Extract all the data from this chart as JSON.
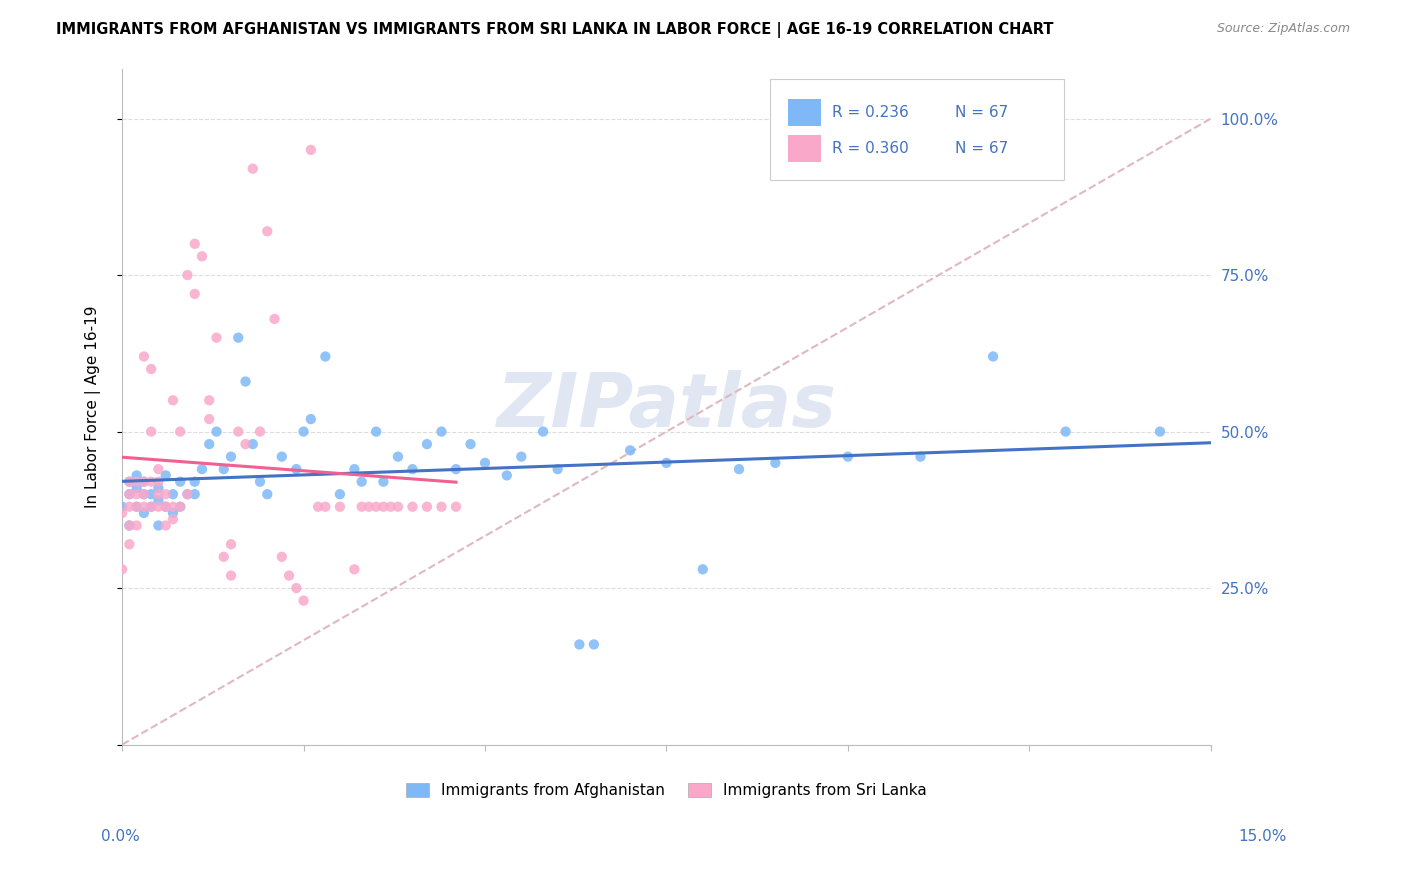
{
  "title": "IMMIGRANTS FROM AFGHANISTAN VS IMMIGRANTS FROM SRI LANKA IN LABOR FORCE | AGE 16-19 CORRELATION CHART",
  "source": "Source: ZipAtlas.com",
  "ylabel": "In Labor Force | Age 16-19",
  "xmin": 0.0,
  "xmax": 0.15,
  "ymin": 0.0,
  "ymax": 1.08,
  "R_afghanistan": 0.236,
  "N_afghanistan": 67,
  "R_srilanka": 0.36,
  "N_srilanka": 67,
  "color_afghanistan": "#7EB8F7",
  "color_srilanka": "#F9A8C9",
  "trend_afghanistan": "#4472C4",
  "trend_srilanka": "#F06090",
  "diagonal_color": "#E0B8C0",
  "watermark": "ZIPatlas",
  "grid_color": "#DDDDDD",
  "background_color": "#FFFFFF",
  "axis_label_color": "#4472C4"
}
